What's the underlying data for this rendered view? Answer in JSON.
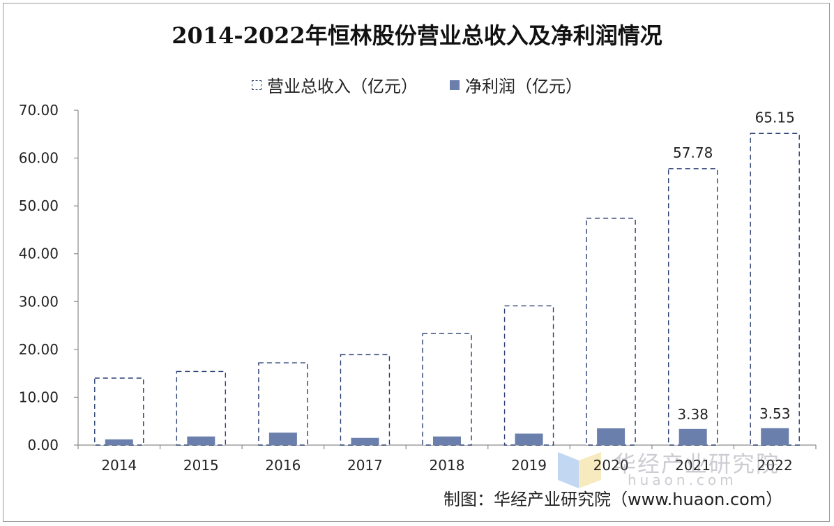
{
  "chart_data": {
    "type": "bar",
    "title": "2014-2022年恒林股份营业总收入及净利润情况",
    "categories": [
      "2014",
      "2015",
      "2016",
      "2017",
      "2018",
      "2019",
      "2020",
      "2021",
      "2022"
    ],
    "series": [
      {
        "name": "营业总收入（亿元）",
        "values": [
          14.0,
          15.4,
          17.2,
          18.9,
          23.3,
          29.1,
          47.4,
          57.78,
          65.15
        ],
        "color": "#2b3f73",
        "style": "dashed-outline",
        "data_labels": {
          "2021": "57.78",
          "2022": "65.15"
        }
      },
      {
        "name": "净利润（亿元）",
        "values": [
          1.2,
          1.8,
          2.6,
          1.5,
          1.8,
          2.4,
          3.5,
          3.38,
          3.53
        ],
        "color": "#6b7fad",
        "style": "filled",
        "data_labels": {
          "2021": "3.38",
          "2022": "3.53"
        }
      }
    ],
    "yticks": [
      "0.00",
      "10.00",
      "20.00",
      "30.00",
      "40.00",
      "50.00",
      "60.00",
      "70.00"
    ],
    "ylim": [
      0,
      70
    ],
    "xlabel": "",
    "ylabel": "",
    "grid": false,
    "legend_position": "top-center"
  },
  "source": "制图：华经产业研究院（www.huaon.com）",
  "watermark": {
    "text": "华经产业研究院",
    "sub": "huaon.com",
    "colors": [
      "#8fb8e8",
      "#f3d98a"
    ]
  }
}
